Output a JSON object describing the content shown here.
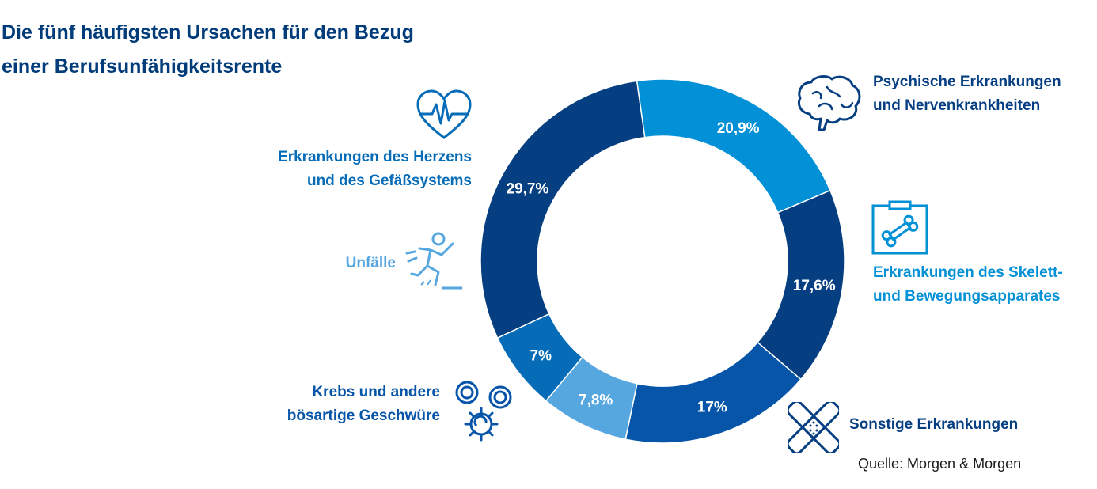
{
  "title": {
    "line1": "Die fünf häufigsten Ursachen für den Bezug",
    "line2": "einer Berufsunfähigkeitsrente"
  },
  "source": "Quelle: Morgen & Morgen",
  "colors": {
    "title": "#003b7a",
    "background": "#ffffff"
  },
  "chart_data": {
    "type": "pie",
    "variant": "donut",
    "title": "Die fünf häufigsten Ursachen für den Bezug einer Berufsunfähigkeitsrente",
    "legend": "none (labels placed beside segments)",
    "slices": [
      {
        "label": "Psychische Erkrankungen und Nervenkrankheiten",
        "value": 29.7,
        "display": "29,7%",
        "color": "#063e82",
        "icon": "brain-icon"
      },
      {
        "label": "Erkrankungen des Skelett- und Bewegungsapparates",
        "value": 20.9,
        "display": "20,9%",
        "color": "#0290d6",
        "icon": "xray-bone-icon"
      },
      {
        "label": "Sonstige Erkrankungen",
        "value": 17.6,
        "display": "17,6%",
        "color": "#063e82",
        "icon": "bandage-icon"
      },
      {
        "label": "Krebs und andere bösartige Geschwüre",
        "value": 17,
        "display": "17%",
        "color": "#0755a8",
        "icon": "cancer-cells-icon"
      },
      {
        "label": "Unfälle",
        "value": 7.8,
        "display": "7,8%",
        "color": "#56a6df",
        "icon": "falling-person-icon"
      },
      {
        "label": "Erkrankungen des Herzens und des Gefäßsystems",
        "value": 7,
        "display": "7%",
        "color": "#066cb8",
        "icon": "heart-pulse-icon"
      }
    ]
  },
  "labels": {
    "psych": {
      "line1": "Psychische Erkrankungen",
      "line2": "und Nervenkrankheiten",
      "color": "#063e82"
    },
    "skelett": {
      "line1": "Erkrankungen des Skelett-",
      "line2": "und Bewegungsapparates",
      "color": "#0290d6"
    },
    "sonstige": {
      "line1": "Sonstige Erkrankungen",
      "color": "#063e82"
    },
    "krebs": {
      "line1": "Krebs und andere",
      "line2": "bösartige Geschwüre",
      "color": "#0755a8"
    },
    "unfaelle": {
      "line1": "Unfälle",
      "color": "#56a6df"
    },
    "herz": {
      "line1": "Erkrankungen des Herzens",
      "line2": "und des Gefäßsystems",
      "color": "#066cb8"
    }
  }
}
